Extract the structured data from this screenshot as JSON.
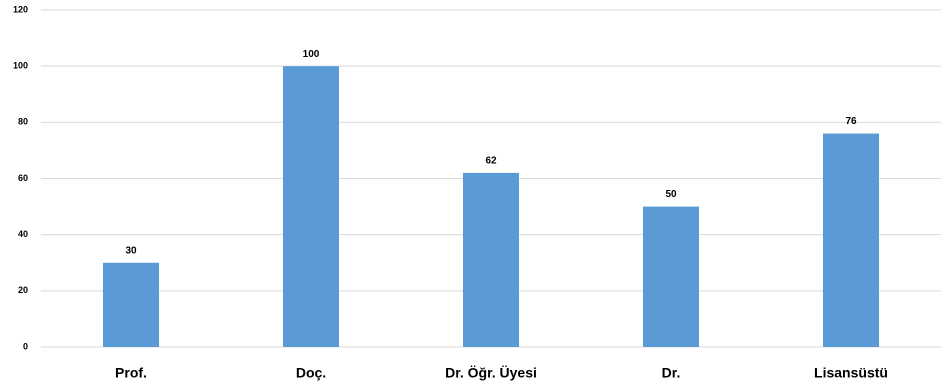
{
  "chart_data": {
    "type": "bar",
    "categories": [
      "Prof.",
      "Doç.",
      "Dr. Öğr. Üyesi",
      "Dr.",
      "Lisansüstü"
    ],
    "values": [
      30,
      100,
      62,
      50,
      76
    ],
    "color": "#5b9bd5",
    "ylim": [
      0,
      120
    ],
    "yticks": [
      0,
      20,
      40,
      60,
      80,
      100,
      120
    ],
    "grid": true
  }
}
